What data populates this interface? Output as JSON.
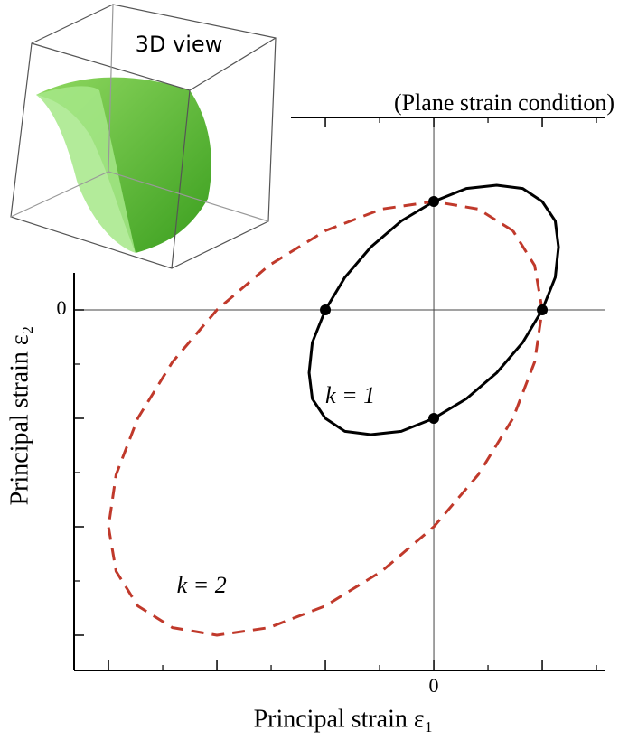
{
  "chart_data": {
    "type": "line",
    "title": "(Plane strain condition)",
    "xlabel": "Principal strain ε₁",
    "ylabel": "Principal strain ε₂",
    "inset_title": "3D view",
    "xlim": [
      -3.317,
      1.583
    ],
    "ylim": [
      -3.325,
      1.775
    ],
    "xticks": [
      {
        "value": -3,
        "label": null
      },
      {
        "value": -2,
        "label": null
      },
      {
        "value": -1,
        "label": null
      },
      0,
      {
        "value": 1,
        "label": null
      }
    ],
    "xminorticks": [
      -2.5,
      -1.5,
      -0.5,
      0.5,
      1.5
    ],
    "yticks": [
      {
        "value": -3,
        "label": null
      },
      {
        "value": -2,
        "label": null
      },
      {
        "value": -1,
        "label": null
      },
      0,
      {
        "value": 1,
        "label": null
      }
    ],
    "yminorticks": [
      -2.5,
      -1.5,
      -0.5,
      0.5,
      1.5
    ],
    "zero_lines": true,
    "series": [
      {
        "color": "#000000",
        "dash": "solid",
        "x": [
          1,
          0.82,
          0.58,
          0.3,
          0,
          -0.3,
          -0.58,
          -0.82,
          -1,
          -1.12,
          -1.15,
          -1.12,
          -1,
          -0.82,
          -0.58,
          -0.3,
          0,
          0.3,
          0.58,
          0.82,
          1,
          1.12,
          1.15,
          1.12,
          1
        ],
        "y": [
          1,
          1.12,
          1.15,
          1.12,
          1,
          0.82,
          0.58,
          0.3,
          0,
          -0.3,
          -0.58,
          -0.82,
          -1,
          -1.12,
          -1.15,
          -1.12,
          -1,
          -0.82,
          -0.58,
          -0.3,
          0,
          0.3,
          0.58,
          0.82,
          1
        ]
      },
      {
        "color": "#c0392b",
        "dash": "dashed",
        "x": [
          0.73,
          0.41,
          0,
          -0.48,
          -1,
          -1.52,
          -2,
          -2.41,
          -2.73,
          -2.93,
          -3,
          -2.93,
          -2.73,
          -2.41,
          -2,
          -1.52,
          -1,
          -0.48,
          0,
          0.41,
          0.73,
          0.93,
          1,
          0.93,
          0.73
        ],
        "y": [
          0.73,
          0.93,
          1,
          0.93,
          0.73,
          0.41,
          0,
          -0.48,
          -1,
          -1.52,
          -2,
          -2.41,
          -2.73,
          -2.93,
          -3,
          -2.93,
          -2.73,
          -2.41,
          -2,
          -1.52,
          -1,
          -0.48,
          0,
          0.41,
          0.73
        ]
      },
      {
        "color": "#000000",
        "marker": "circle",
        "x": [
          0,
          -1,
          1,
          0
        ],
        "y": [
          1,
          0,
          0,
          -1
        ]
      }
    ],
    "annotations": [
      {
        "text": "k = 1",
        "x": -1.0,
        "y": -0.81
      },
      {
        "text": "k = 2",
        "x": -2.37,
        "y": -2.56
      }
    ]
  }
}
